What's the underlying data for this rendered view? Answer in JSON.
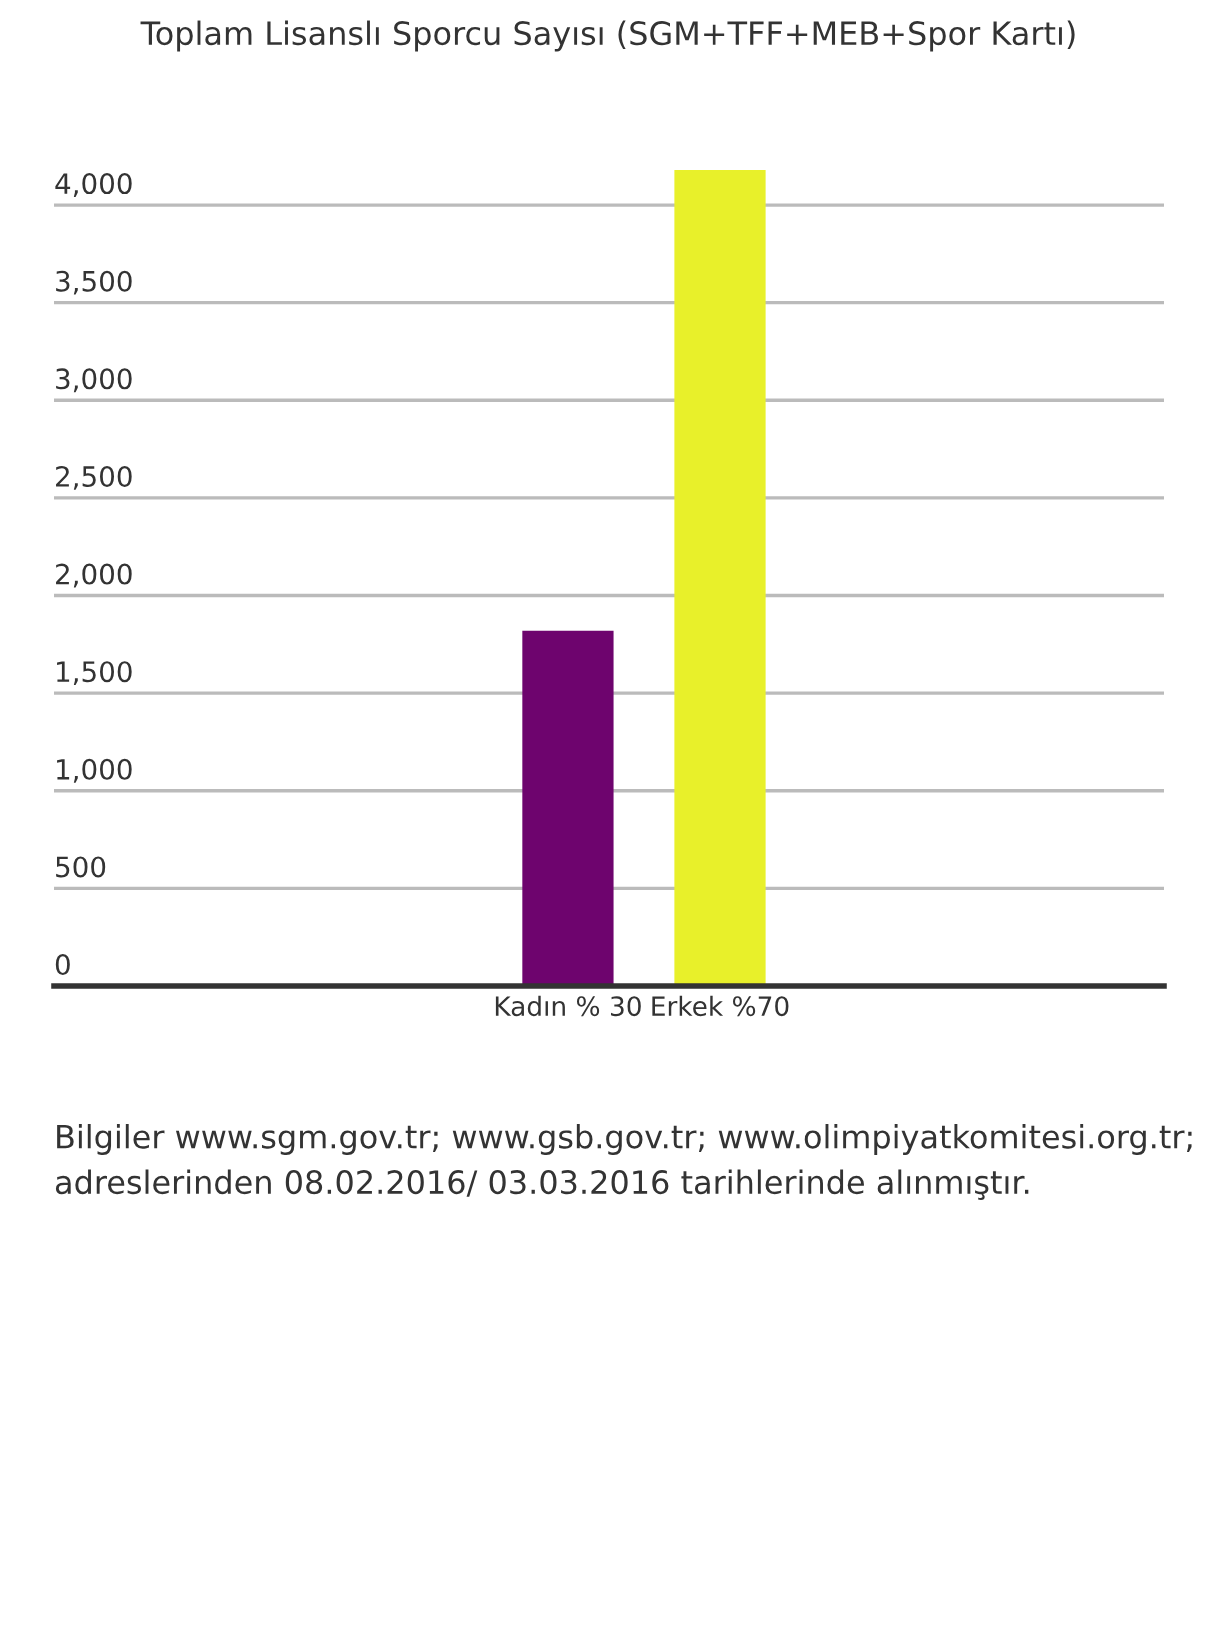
{
  "chart_data": {
    "type": "bar",
    "title": "Toplam Lisanslı Sporcu Sayısı (SGM+TFF+MEB+Spor Kartı)",
    "categories": [
      "Kadın % 30",
      "Erkek %70"
    ],
    "values": [
      1820,
      4180
    ],
    "colors": [
      "#6e046e",
      "#e8f02a"
    ],
    "ylim": [
      0,
      4200
    ],
    "yticks": [
      {
        "value": 0,
        "label": "0"
      },
      {
        "value": 500,
        "label": "500"
      },
      {
        "value": 1000,
        "label": "1,000"
      },
      {
        "value": 1500,
        "label": "1,500"
      },
      {
        "value": 2000,
        "label": "2,000"
      },
      {
        "value": 2500,
        "label": "2,500"
      },
      {
        "value": 3000,
        "label": "3,000"
      },
      {
        "value": 3500,
        "label": "3,500"
      },
      {
        "value": 4000,
        "label": "4,000"
      }
    ],
    "grid": "y",
    "legend": false,
    "annotations": [
      "Bilgiler www.sgm.gov.tr; www.gsb.gov.tr; www.olimpiyatkomitesi.org.tr; adreslerinden 08.02.2016/ 03.03.2016 tarihlerinde alınmıştır."
    ]
  }
}
